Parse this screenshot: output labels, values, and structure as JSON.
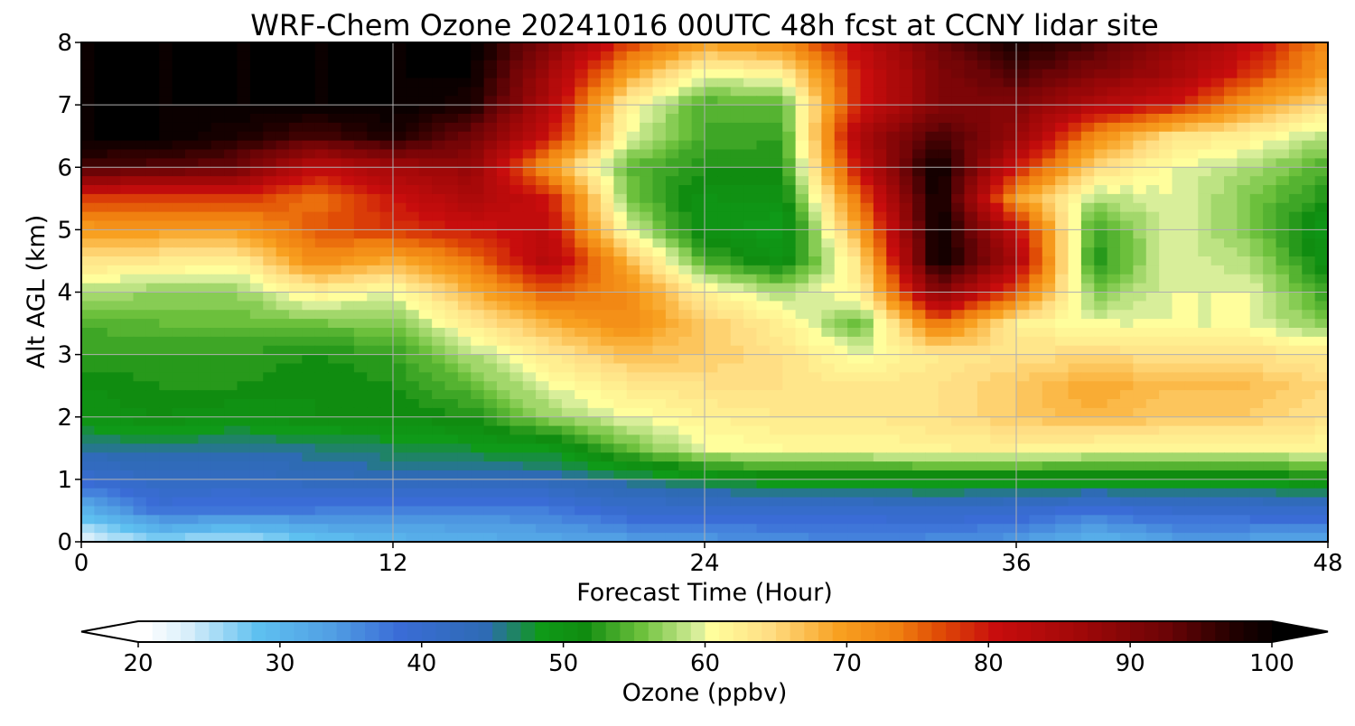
{
  "chart_data": {
    "type": "heatmap",
    "title": "WRF-Chem Ozone  20241016 00UTC 48h fcst at CCNY lidar site",
    "xlabel": "Forecast Time (Hour)",
    "ylabel": "Alt AGL (km)",
    "xlim": [
      0,
      48
    ],
    "ylim": [
      0,
      8
    ],
    "xticks": [
      0,
      12,
      24,
      36,
      48
    ],
    "yticks": [
      0,
      1,
      2,
      3,
      4,
      5,
      6,
      7,
      8
    ],
    "grid": true,
    "x": [
      0,
      3,
      6,
      9,
      12,
      15,
      18,
      21,
      24,
      27,
      30,
      33,
      36,
      39,
      42,
      45,
      48
    ],
    "y": [
      0,
      0.5,
      1,
      1.5,
      2,
      2.5,
      3,
      3.5,
      4,
      4.5,
      5,
      5.5,
      6,
      6.5,
      7,
      7.5,
      8
    ],
    "z": [
      [
        22,
        26,
        24,
        28,
        30,
        31,
        32,
        33,
        34,
        35,
        36,
        35,
        34,
        30,
        33,
        33,
        32
      ],
      [
        30,
        38,
        37,
        37,
        36,
        36,
        37,
        40,
        40,
        40,
        40,
        41,
        40,
        38,
        40,
        40,
        41
      ],
      [
        40,
        42,
        42,
        43,
        44,
        44,
        44,
        46,
        48,
        50,
        50,
        50,
        50,
        50,
        50,
        50,
        51
      ],
      [
        45,
        46,
        45,
        46,
        47,
        48,
        49,
        55,
        60,
        61,
        61,
        62,
        62,
        61,
        61,
        61,
        61
      ],
      [
        50,
        51,
        50,
        51,
        51,
        52,
        57,
        60,
        62,
        63,
        63,
        64,
        66,
        68,
        66,
        66,
        64
      ],
      [
        51,
        52,
        52,
        51,
        52,
        55,
        60,
        63,
        64,
        64,
        63,
        64,
        66,
        69,
        67,
        67,
        65
      ],
      [
        53,
        53,
        53,
        52,
        53,
        58,
        63,
        67,
        66,
        64,
        60,
        63,
        64,
        65,
        64,
        64,
        63
      ],
      [
        54,
        55,
        55,
        56,
        56,
        63,
        68,
        72,
        66,
        62,
        55,
        75,
        62,
        60,
        60,
        60,
        56
      ],
      [
        58,
        57,
        57,
        62,
        60,
        68,
        76,
        72,
        62,
        58,
        62,
        90,
        76,
        56,
        60,
        60,
        53
      ],
      [
        64,
        63,
        62,
        72,
        68,
        74,
        84,
        68,
        54,
        50,
        64,
        100,
        85,
        52,
        60,
        58,
        50
      ],
      [
        70,
        70,
        70,
        76,
        78,
        80,
        82,
        60,
        50,
        48,
        70,
        100,
        82,
        53,
        60,
        56,
        49
      ],
      [
        77,
        77,
        78,
        74,
        80,
        85,
        80,
        56,
        50,
        50,
        75,
        100,
        70,
        58,
        60,
        56,
        52
      ],
      [
        95,
        94,
        92,
        82,
        86,
        88,
        70,
        55,
        52,
        52,
        82,
        100,
        80,
        65,
        60,
        58,
        54
      ],
      [
        100,
        100,
        98,
        95,
        98,
        92,
        80,
        60,
        54,
        53,
        85,
        95,
        88,
        72,
        64,
        62,
        58
      ],
      [
        100,
        100,
        100,
        100,
        100,
        98,
        84,
        62,
        54,
        55,
        80,
        90,
        90,
        84,
        80,
        70,
        64
      ],
      [
        100,
        100,
        100,
        100,
        100,
        100,
        86,
        70,
        60,
        62,
        80,
        90,
        95,
        90,
        86,
        78,
        70
      ],
      [
        100,
        100,
        100,
        100,
        100,
        100,
        90,
        78,
        70,
        72,
        82,
        92,
        98,
        95,
        88,
        82,
        72
      ]
    ],
    "colorbar": {
      "label": "Ozone  (ppbv)",
      "min": 20,
      "max": 100,
      "step": 1,
      "ticks": [
        20,
        30,
        40,
        50,
        60,
        70,
        80,
        90,
        100
      ],
      "extend": "both",
      "colors": {
        "stops": [
          [
            20,
            "#ffffff"
          ],
          [
            23,
            "#d8eefa"
          ],
          [
            28,
            "#5ec0f0"
          ],
          [
            33,
            "#52a0e4"
          ],
          [
            38,
            "#3a6cd6"
          ],
          [
            44,
            "#2e6bb4"
          ],
          [
            48,
            "#0f9a18"
          ],
          [
            51,
            "#108c10"
          ],
          [
            55,
            "#6cc03c"
          ],
          [
            59,
            "#d8ee9a"
          ],
          [
            60,
            "#fffe9c"
          ],
          [
            64,
            "#ffde84"
          ],
          [
            69,
            "#f8a020"
          ],
          [
            73,
            "#f08010"
          ],
          [
            76,
            "#e04c06"
          ],
          [
            80,
            "#c80d0d"
          ],
          [
            86,
            "#a00808"
          ],
          [
            92,
            "#6c0406"
          ],
          [
            97,
            "#200000"
          ],
          [
            100,
            "#000000"
          ]
        ]
      }
    }
  }
}
